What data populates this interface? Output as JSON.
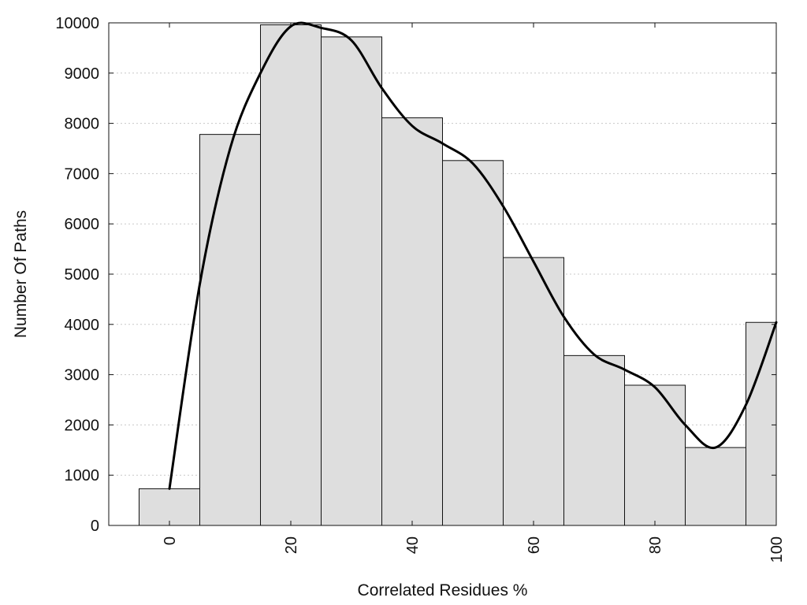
{
  "chart_data": {
    "type": "bar",
    "title": "",
    "xlabel": "Correlated Residues %",
    "ylabel": "Number Of Paths",
    "x": [
      0,
      10,
      20,
      30,
      40,
      50,
      60,
      70,
      80,
      90,
      100
    ],
    "values": [
      730,
      7780,
      9960,
      9720,
      8110,
      7260,
      5330,
      3380,
      2790,
      1550,
      4040
    ],
    "bin_width": 10,
    "xlim": [
      -10,
      100
    ],
    "ylim": [
      0,
      10000
    ],
    "x_ticks": [
      0,
      20,
      40,
      60,
      80,
      100
    ],
    "y_ticks": [
      0,
      1000,
      2000,
      3000,
      4000,
      5000,
      6000,
      7000,
      8000,
      9000,
      10000
    ],
    "grid": "horizontal dotted",
    "x_tick_rotation": "vertical",
    "trend_line": {
      "x": [
        0,
        5,
        10,
        15,
        20,
        25,
        30,
        35,
        40,
        45,
        50,
        55,
        60,
        65,
        70,
        75,
        80,
        85,
        90,
        95,
        100
      ],
      "y": [
        730,
        4800,
        7500,
        9000,
        9930,
        9900,
        9650,
        8700,
        7950,
        7600,
        7200,
        6350,
        5250,
        4150,
        3400,
        3100,
        2750,
        2000,
        1550,
        2400,
        4040
      ]
    },
    "colors": {
      "bar_fill": "#dedede",
      "bar_stroke": "#111111",
      "line": "#000000",
      "grid": "#c8c8c8"
    }
  }
}
